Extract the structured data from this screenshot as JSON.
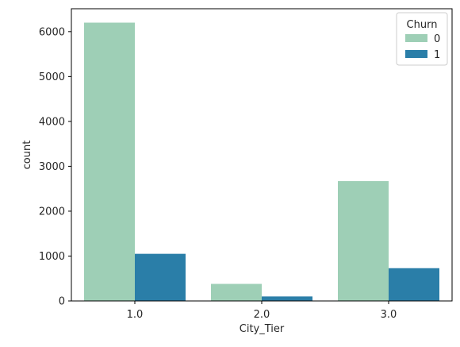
{
  "chart_data": {
    "type": "bar",
    "title": "",
    "xlabel": "City_Tier",
    "ylabel": "count",
    "categories": [
      "1.0",
      "2.0",
      "3.0"
    ],
    "ylim": [
      0,
      6510
    ],
    "yticks": [
      0,
      1000,
      2000,
      3000,
      4000,
      5000,
      6000
    ],
    "series": [
      {
        "name": "0",
        "values": [
          6200,
          380,
          2670
        ],
        "color": "#9ecfb6"
      },
      {
        "name": "1",
        "values": [
          1050,
          100,
          730
        ],
        "color": "#2a7ea8"
      }
    ],
    "legend": {
      "title": "Churn",
      "placement": "top-right"
    },
    "grid": false
  }
}
